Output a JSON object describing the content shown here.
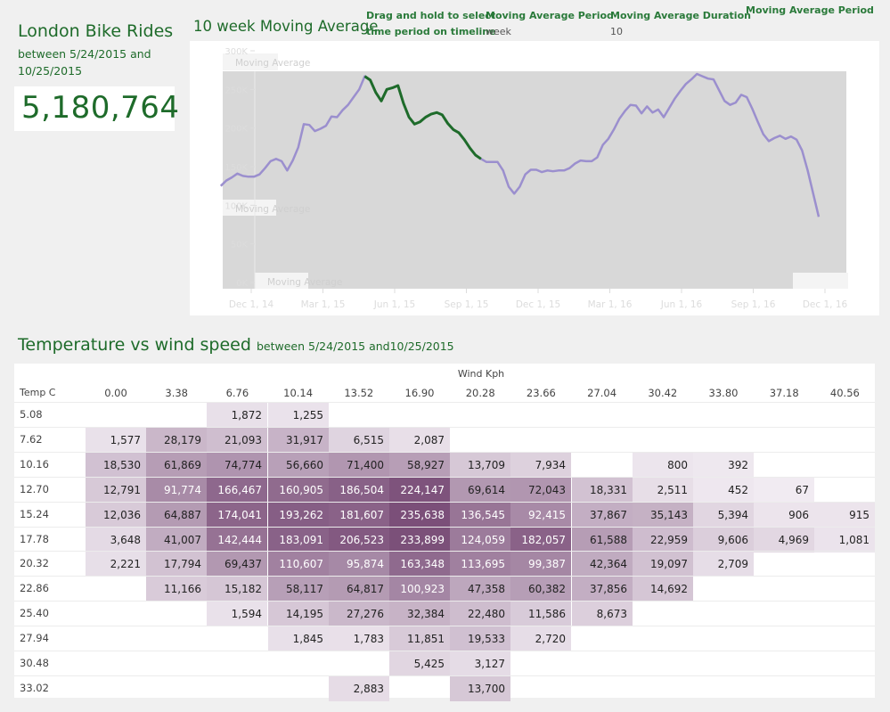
{
  "kpi": {
    "title": "London Bike Rides",
    "subtitle": "between 5/24/2015 and 10/25/2015",
    "value": "5,180,764"
  },
  "chart_header": {
    "title": "10 week Moving Average",
    "drag_hint": [
      "Drag and hold to select",
      "time period on timeline"
    ],
    "ma_period_label": "Moving Average Period",
    "ma_period_value": "week",
    "ma_duration_label": "Moving Average Duration",
    "ma_duration_value": "10",
    "ma_period_label_2": "Moving Average Period"
  },
  "colors": {
    "brand_green": "#1e6b2a",
    "line_selected": "#1e6b2a",
    "line_other": "#9b8fce",
    "shade_outside_selection": "#d8d8d8",
    "heat_low": "#f3eef4",
    "heat_high": "#7b4f79"
  },
  "chart_data": {
    "type": "line",
    "title": "10 week Moving Average",
    "x_tick_labels": [
      "Dec 1, 14",
      "Mar 1, 15",
      "Jun 1, 15",
      "Sep 1, 15",
      "Dec 1, 15",
      "Mar 1, 16",
      "Jun 1, 16",
      "Sep 1, 16",
      "Dec 1, 16"
    ],
    "y_tick_labels": [
      "0K",
      "50K",
      "100K",
      "150K",
      "200K",
      "250K",
      "300K"
    ],
    "ylim": [
      0,
      300000
    ],
    "x_start": "2014-12-01",
    "x_end": "2016-12-01",
    "selected_range": [
      "2015-05-24",
      "2015-10-25"
    ],
    "overlay_labels": [
      "Moving Average",
      "Moving Average",
      "Moving Average"
    ],
    "series": [
      {
        "x": [
          "2014-11-24",
          "2014-12-01",
          "2014-12-08",
          "2014-12-15",
          "2014-12-22",
          "2014-12-29",
          "2015-01-05",
          "2015-01-12",
          "2015-01-19",
          "2015-01-26",
          "2015-02-02",
          "2015-02-09",
          "2015-02-16",
          "2015-02-23",
          "2015-03-02",
          "2015-03-09",
          "2015-03-16",
          "2015-03-23",
          "2015-03-30",
          "2015-04-06",
          "2015-04-13",
          "2015-04-20",
          "2015-04-27",
          "2015-05-04",
          "2015-05-11",
          "2015-05-18",
          "2015-05-25",
          "2015-06-01",
          "2015-06-08",
          "2015-06-15",
          "2015-06-22",
          "2015-06-29",
          "2015-07-06",
          "2015-07-13",
          "2015-07-20",
          "2015-07-27",
          "2015-08-03",
          "2015-08-10",
          "2015-08-17",
          "2015-08-24",
          "2015-08-31",
          "2015-09-07",
          "2015-09-14",
          "2015-09-21",
          "2015-09-28",
          "2015-10-05",
          "2015-10-12",
          "2015-10-19",
          "2015-10-26",
          "2015-11-02",
          "2015-11-09",
          "2015-11-16",
          "2015-11-23",
          "2015-11-30",
          "2015-12-07",
          "2015-12-14",
          "2015-12-21",
          "2015-12-28",
          "2016-01-04",
          "2016-01-11",
          "2016-01-18",
          "2016-01-25",
          "2016-02-01",
          "2016-02-08",
          "2016-02-15",
          "2016-02-22",
          "2016-02-29",
          "2016-03-07",
          "2016-03-14",
          "2016-03-21",
          "2016-03-28",
          "2016-04-04",
          "2016-04-11",
          "2016-04-18",
          "2016-04-25",
          "2016-05-02",
          "2016-05-09",
          "2016-05-16",
          "2016-05-23",
          "2016-05-30",
          "2016-06-06",
          "2016-06-13",
          "2016-06-20",
          "2016-06-27",
          "2016-07-04",
          "2016-07-11",
          "2016-07-18",
          "2016-07-25",
          "2016-08-01",
          "2016-08-08",
          "2016-08-15",
          "2016-08-22",
          "2016-08-29",
          "2016-09-05",
          "2016-09-12",
          "2016-09-19",
          "2016-09-26",
          "2016-10-03",
          "2016-10-10",
          "2016-10-17",
          "2016-10-24",
          "2016-10-31",
          "2016-11-07",
          "2016-11-14",
          "2016-11-21",
          "2016-11-28",
          "2016-12-05",
          "2016-12-12",
          "2016-12-19"
        ],
        "y": [
          125000,
          132000,
          136000,
          141000,
          138000,
          137000,
          137000,
          140000,
          148000,
          157000,
          160000,
          157000,
          145000,
          158000,
          175000,
          205000,
          204000,
          196000,
          199000,
          203000,
          215000,
          214000,
          223000,
          230000,
          240000,
          250000,
          267000,
          262000,
          246000,
          235000,
          250000,
          252000,
          255000,
          232000,
          214000,
          205000,
          208000,
          214000,
          218000,
          220000,
          217000,
          206000,
          198000,
          194000,
          185000,
          174000,
          165000,
          160000,
          156000,
          156000,
          156000,
          145000,
          124000,
          115000,
          124000,
          140000,
          146000,
          146000,
          143000,
          145000,
          144000,
          145000,
          145000,
          148000,
          154000,
          158000,
          157000,
          157000,
          162000,
          178000,
          186000,
          198000,
          212000,
          222000,
          230000,
          229000,
          219000,
          228000,
          220000,
          224000,
          214000,
          226000,
          238000,
          248000,
          257000,
          263000,
          270000,
          267000,
          264000,
          263000,
          249000,
          235000,
          230000,
          233000,
          243000,
          240000,
          225000,
          208000,
          192000,
          183000,
          187000,
          190000,
          186000,
          189000,
          185000,
          171000,
          145000,
          115000,
          85000
        ],
        "highlighted": [
          "2015-05-24",
          "2015-10-25"
        ]
      }
    ]
  },
  "table": {
    "title": "Temperature vs wind speed",
    "title_suffix": "between 5/24/2015 and10/25/2015",
    "col_axis_label": "Wind Kph",
    "row_axis_label": "Temp C",
    "columns": [
      "0.00",
      "3.38",
      "6.76",
      "10.14",
      "13.52",
      "16.90",
      "20.28",
      "23.66",
      "27.04",
      "30.42",
      "33.80",
      "37.18",
      "40.56"
    ],
    "rows": [
      {
        "label": "5.08",
        "values": [
          null,
          null,
          1872,
          1255,
          null,
          null,
          null,
          null,
          null,
          null,
          null,
          null,
          null
        ]
      },
      {
        "label": "7.62",
        "values": [
          1577,
          28179,
          21093,
          31917,
          6515,
          2087,
          null,
          null,
          null,
          null,
          null,
          null,
          null
        ]
      },
      {
        "label": "10.16",
        "values": [
          18530,
          61869,
          74774,
          56660,
          71400,
          58927,
          13709,
          7934,
          null,
          800,
          392,
          null,
          null
        ]
      },
      {
        "label": "12.70",
        "values": [
          12791,
          91774,
          166467,
          160905,
          186504,
          224147,
          69614,
          72043,
          18331,
          2511,
          452,
          67,
          null
        ]
      },
      {
        "label": "15.24",
        "values": [
          12036,
          64887,
          174041,
          193262,
          181607,
          235638,
          136545,
          92415,
          37867,
          35143,
          5394,
          906,
          915
        ]
      },
      {
        "label": "17.78",
        "values": [
          3648,
          41007,
          142444,
          183091,
          206523,
          233899,
          124059,
          182057,
          61588,
          22959,
          9606,
          4969,
          1081
        ]
      },
      {
        "label": "20.32",
        "values": [
          2221,
          17794,
          69437,
          110607,
          95874,
          163348,
          113695,
          99387,
          42364,
          19097,
          2709,
          null,
          null
        ]
      },
      {
        "label": "22.86",
        "values": [
          null,
          11166,
          15182,
          58117,
          64817,
          100923,
          47358,
          60382,
          37856,
          14692,
          null,
          null,
          null
        ]
      },
      {
        "label": "25.40",
        "values": [
          null,
          null,
          1594,
          14195,
          27276,
          32384,
          22480,
          11586,
          8673,
          null,
          null,
          null,
          null
        ]
      },
      {
        "label": "27.94",
        "values": [
          null,
          null,
          null,
          1845,
          1783,
          11851,
          19533,
          2720,
          null,
          null,
          null,
          null,
          null
        ]
      },
      {
        "label": "30.48",
        "values": [
          null,
          null,
          null,
          null,
          null,
          5425,
          3127,
          null,
          null,
          null,
          null,
          null,
          null
        ]
      },
      {
        "label": "33.02",
        "values": [
          null,
          null,
          null,
          null,
          2883,
          null,
          13700,
          null,
          null,
          null,
          null,
          null,
          null
        ]
      }
    ]
  }
}
